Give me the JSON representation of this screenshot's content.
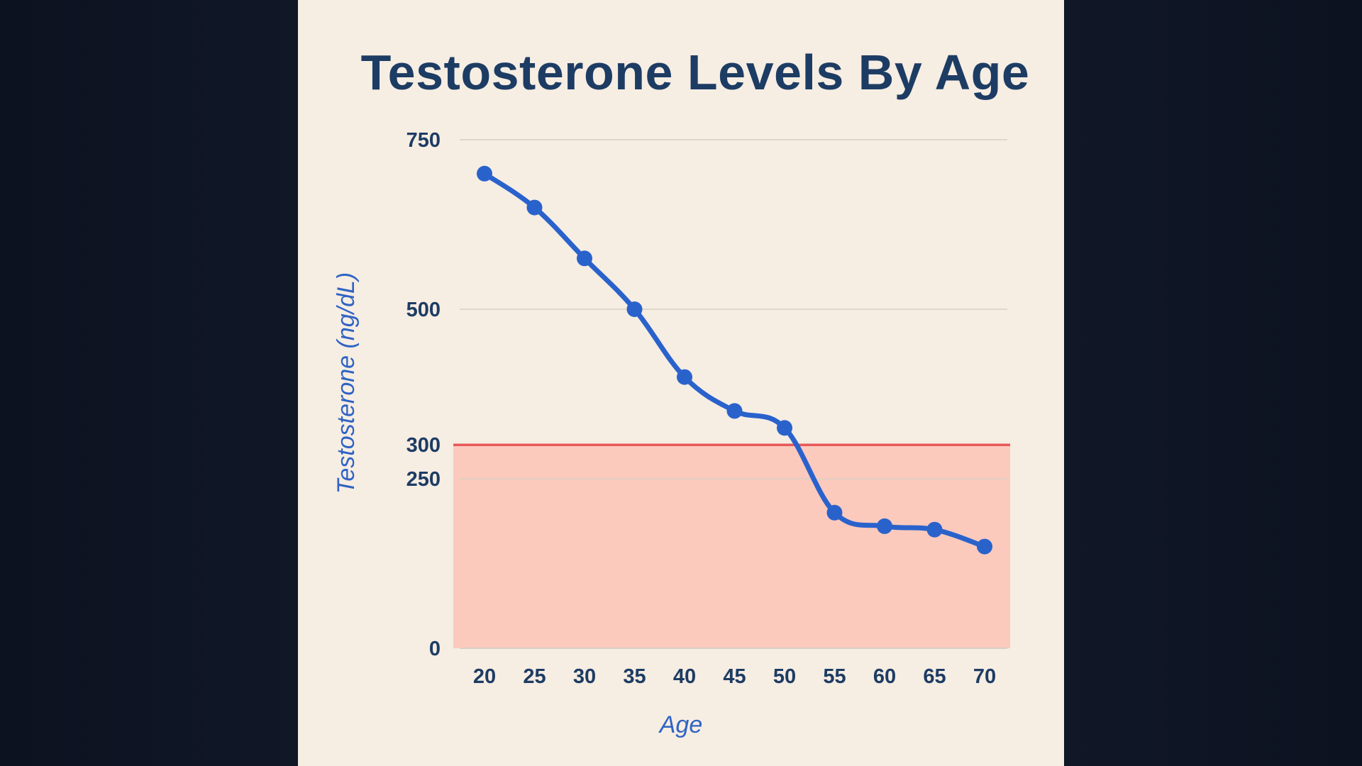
{
  "chart_data": {
    "type": "line",
    "title": "Testosterone Levels By Age",
    "xlabel": "Age",
    "ylabel": "Testosterone (ng/dL)",
    "x": [
      20,
      25,
      30,
      35,
      40,
      45,
      50,
      55,
      60,
      65,
      70
    ],
    "series": [
      {
        "values": [
          700,
          650,
          575,
          500,
          400,
          350,
          325,
          200,
          180,
          175,
          150
        ]
      }
    ],
    "yticks": [
      0,
      250,
      300,
      500,
      750
    ],
    "ylim": [
      0,
      750
    ],
    "threshold": {
      "value": 300,
      "shaded_below": true
    },
    "gridlines": [
      250,
      500,
      750
    ],
    "colors": {
      "line": "#2a62cc",
      "threshold_line": "#e8595a",
      "shade": "#fbcabd",
      "grid": "#d9d0c5",
      "text": "#1d3c63",
      "axis_title": "#2f63c4",
      "panel": "#f6ede3"
    }
  }
}
